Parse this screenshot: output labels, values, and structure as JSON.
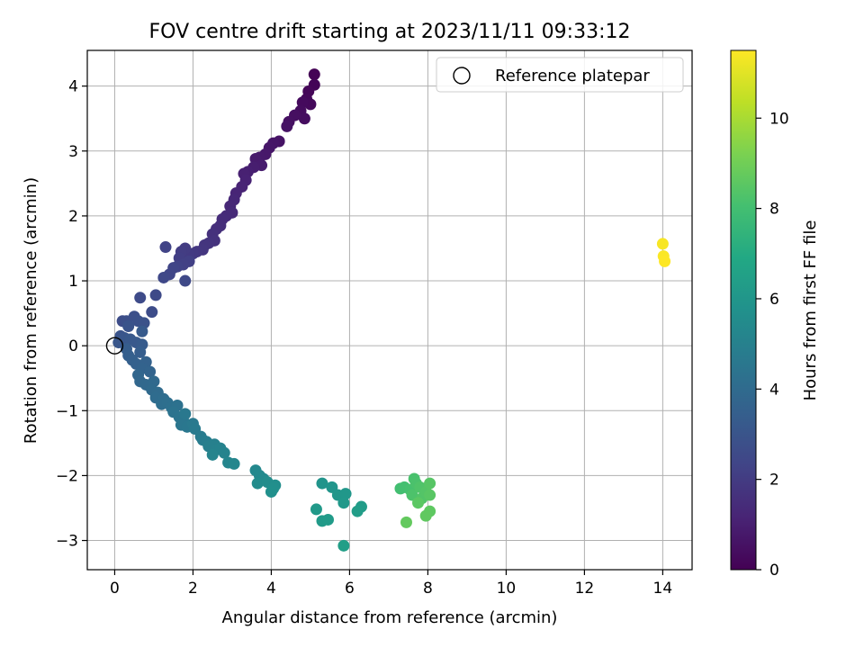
{
  "chart_data": {
    "type": "scatter",
    "title": "FOV centre drift starting at 2023/11/11 09:33:12",
    "xlabel": "Angular distance from reference (arcmin)",
    "ylabel": "Rotation from reference (arcmin)",
    "xlim": [
      -0.7,
      14.75
    ],
    "ylim": [
      -3.45,
      4.55
    ],
    "xticks": [
      0,
      2,
      4,
      6,
      8,
      10,
      12,
      14
    ],
    "yticks": [
      -3,
      -2,
      -1,
      0,
      1,
      2,
      3,
      4
    ],
    "grid": true,
    "legend": {
      "placement": "top-right",
      "entries": [
        "Reference platepar"
      ]
    },
    "reference_point": {
      "x": 0,
      "y": 0,
      "label": "Reference platepar"
    },
    "colorbar": {
      "label": "Hours from first FF file",
      "colormap": "viridis",
      "range": [
        0,
        11.5
      ],
      "ticks": [
        0,
        2,
        4,
        6,
        8,
        10
      ]
    },
    "series": [
      {
        "values": [
          [
            5.1,
            4.18,
            0.05
          ],
          [
            5.1,
            4.02,
            0.1
          ],
          [
            4.95,
            3.92,
            0.15
          ],
          [
            4.9,
            3.8,
            0.2
          ],
          [
            5.0,
            3.72,
            0.25
          ],
          [
            4.8,
            3.75,
            0.3
          ],
          [
            4.75,
            3.62,
            0.35
          ],
          [
            4.85,
            3.5,
            0.4
          ],
          [
            4.6,
            3.55,
            0.45
          ],
          [
            4.45,
            3.45,
            0.5
          ],
          [
            4.4,
            3.38,
            0.55
          ],
          [
            4.2,
            3.15,
            0.6
          ],
          [
            4.05,
            3.12,
            0.65
          ],
          [
            3.95,
            3.05,
            0.7
          ],
          [
            3.85,
            2.95,
            0.75
          ],
          [
            3.7,
            2.9,
            0.8
          ],
          [
            3.6,
            2.88,
            0.85
          ],
          [
            3.75,
            2.78,
            0.9
          ],
          [
            3.55,
            2.75,
            0.95
          ],
          [
            3.4,
            2.68,
            1.0
          ],
          [
            3.3,
            2.65,
            1.05
          ],
          [
            3.35,
            2.55,
            1.1
          ],
          [
            3.25,
            2.45,
            1.15
          ],
          [
            3.1,
            2.35,
            1.2
          ],
          [
            3.05,
            2.25,
            1.25
          ],
          [
            2.95,
            2.15,
            1.3
          ],
          [
            3.0,
            2.05,
            1.35
          ],
          [
            2.85,
            2.0,
            1.4
          ],
          [
            2.75,
            1.95,
            1.45
          ],
          [
            2.7,
            1.85,
            1.5
          ],
          [
            2.6,
            1.8,
            1.55
          ],
          [
            2.5,
            1.72,
            1.6
          ],
          [
            2.55,
            1.62,
            1.65
          ],
          [
            2.4,
            1.58,
            1.7
          ],
          [
            2.3,
            1.55,
            1.75
          ],
          [
            2.25,
            1.48,
            1.8
          ],
          [
            2.1,
            1.45,
            1.85
          ],
          [
            2.0,
            1.42,
            1.9
          ],
          [
            1.9,
            1.4,
            1.95
          ],
          [
            1.8,
            1.5,
            2.0
          ],
          [
            1.7,
            1.45,
            2.05
          ],
          [
            1.65,
            1.35,
            2.1
          ],
          [
            1.9,
            1.3,
            2.15
          ],
          [
            1.75,
            1.25,
            2.2
          ],
          [
            1.6,
            1.22,
            2.25
          ],
          [
            1.3,
            1.52,
            2.3
          ],
          [
            1.5,
            1.2,
            2.35
          ],
          [
            1.4,
            1.1,
            2.4
          ],
          [
            1.25,
            1.05,
            2.45
          ],
          [
            1.8,
            1.0,
            2.5
          ],
          [
            1.05,
            0.78,
            2.55
          ],
          [
            0.65,
            0.74,
            2.6
          ],
          [
            0.95,
            0.52,
            2.65
          ],
          [
            0.2,
            0.38,
            2.7
          ],
          [
            0.3,
            0.38,
            2.75
          ],
          [
            0.5,
            0.45,
            2.8
          ],
          [
            0.6,
            0.38,
            2.85
          ],
          [
            0.75,
            0.35,
            2.9
          ],
          [
            0.35,
            0.3,
            2.95
          ],
          [
            0.15,
            0.15,
            3.0
          ],
          [
            0.25,
            0.12,
            3.05
          ],
          [
            0.1,
            0.05,
            3.1
          ],
          [
            0.4,
            0.1,
            3.15
          ],
          [
            0.55,
            0.05,
            3.2
          ],
          [
            0.7,
            0.22,
            3.25
          ],
          [
            0.7,
            0.02,
            3.3
          ],
          [
            0.3,
            -0.05,
            3.35
          ],
          [
            0.65,
            -0.1,
            3.4
          ],
          [
            0.35,
            -0.15,
            3.45
          ],
          [
            0.45,
            -0.22,
            3.5
          ],
          [
            0.55,
            -0.28,
            3.55
          ],
          [
            0.8,
            -0.25,
            3.6
          ],
          [
            0.7,
            -0.35,
            3.65
          ],
          [
            0.9,
            -0.4,
            3.7
          ],
          [
            0.6,
            -0.45,
            3.75
          ],
          [
            0.65,
            -0.55,
            3.8
          ],
          [
            0.8,
            -0.6,
            3.85
          ],
          [
            1.0,
            -0.55,
            3.9
          ],
          [
            0.95,
            -0.68,
            3.95
          ],
          [
            1.1,
            -0.72,
            4.0
          ],
          [
            1.05,
            -0.8,
            4.05
          ],
          [
            1.25,
            -0.82,
            4.1
          ],
          [
            1.2,
            -0.9,
            4.15
          ],
          [
            1.35,
            -0.88,
            4.2
          ],
          [
            1.45,
            -0.95,
            4.25
          ],
          [
            1.6,
            -0.92,
            4.3
          ],
          [
            1.5,
            -1.02,
            4.35
          ],
          [
            1.65,
            -1.1,
            4.4
          ],
          [
            1.75,
            -1.15,
            4.45
          ],
          [
            1.7,
            -1.22,
            4.5
          ],
          [
            1.85,
            -1.25,
            4.55
          ],
          [
            1.8,
            -1.05,
            4.6
          ],
          [
            2.0,
            -1.2,
            4.65
          ],
          [
            2.05,
            -1.28,
            4.7
          ],
          [
            2.2,
            -1.4,
            4.75
          ],
          [
            2.25,
            -1.45,
            4.8
          ],
          [
            2.35,
            -1.48,
            4.85
          ],
          [
            2.4,
            -1.55,
            4.9
          ],
          [
            2.55,
            -1.52,
            4.95
          ],
          [
            2.6,
            -1.6,
            5.0
          ],
          [
            2.7,
            -1.58,
            5.05
          ],
          [
            2.8,
            -1.65,
            5.1
          ],
          [
            2.5,
            -1.68,
            5.15
          ],
          [
            2.9,
            -1.8,
            5.2
          ],
          [
            3.05,
            -1.82,
            5.25
          ],
          [
            3.6,
            -1.92,
            5.35
          ],
          [
            3.7,
            -2.0,
            5.4
          ],
          [
            3.8,
            -2.05,
            5.45
          ],
          [
            3.65,
            -2.12,
            5.5
          ],
          [
            3.9,
            -2.1,
            5.55
          ],
          [
            4.1,
            -2.15,
            5.6
          ],
          [
            4.05,
            -2.2,
            5.65
          ],
          [
            4.0,
            -2.25,
            5.7
          ],
          [
            5.3,
            -2.12,
            5.9
          ],
          [
            5.55,
            -2.18,
            5.95
          ],
          [
            5.7,
            -2.3,
            6.0
          ],
          [
            5.9,
            -2.28,
            6.05
          ],
          [
            5.85,
            -2.42,
            6.1
          ],
          [
            5.15,
            -2.52,
            6.15
          ],
          [
            5.3,
            -2.7,
            6.2
          ],
          [
            5.45,
            -2.68,
            6.25
          ],
          [
            6.3,
            -2.48,
            6.3
          ],
          [
            6.2,
            -2.55,
            6.35
          ],
          [
            5.85,
            -3.08,
            6.4
          ],
          [
            7.3,
            -2.2,
            8.0
          ],
          [
            7.4,
            -2.18,
            8.05
          ],
          [
            7.55,
            -2.22,
            8.1
          ],
          [
            7.65,
            -2.05,
            8.15
          ],
          [
            7.7,
            -2.12,
            8.2
          ],
          [
            7.6,
            -2.3,
            8.25
          ],
          [
            7.8,
            -2.18,
            8.3
          ],
          [
            7.85,
            -2.35,
            8.35
          ],
          [
            7.95,
            -2.25,
            8.4
          ],
          [
            8.05,
            -2.12,
            8.45
          ],
          [
            8.05,
            -2.3,
            8.5
          ],
          [
            7.75,
            -2.42,
            8.55
          ],
          [
            8.05,
            -2.55,
            8.6
          ],
          [
            7.95,
            -2.62,
            8.65
          ],
          [
            7.45,
            -2.72,
            8.7
          ],
          [
            14.0,
            1.57,
            11.4
          ],
          [
            14.02,
            1.38,
            11.45
          ],
          [
            14.05,
            1.3,
            11.5
          ]
        ]
      }
    ]
  }
}
